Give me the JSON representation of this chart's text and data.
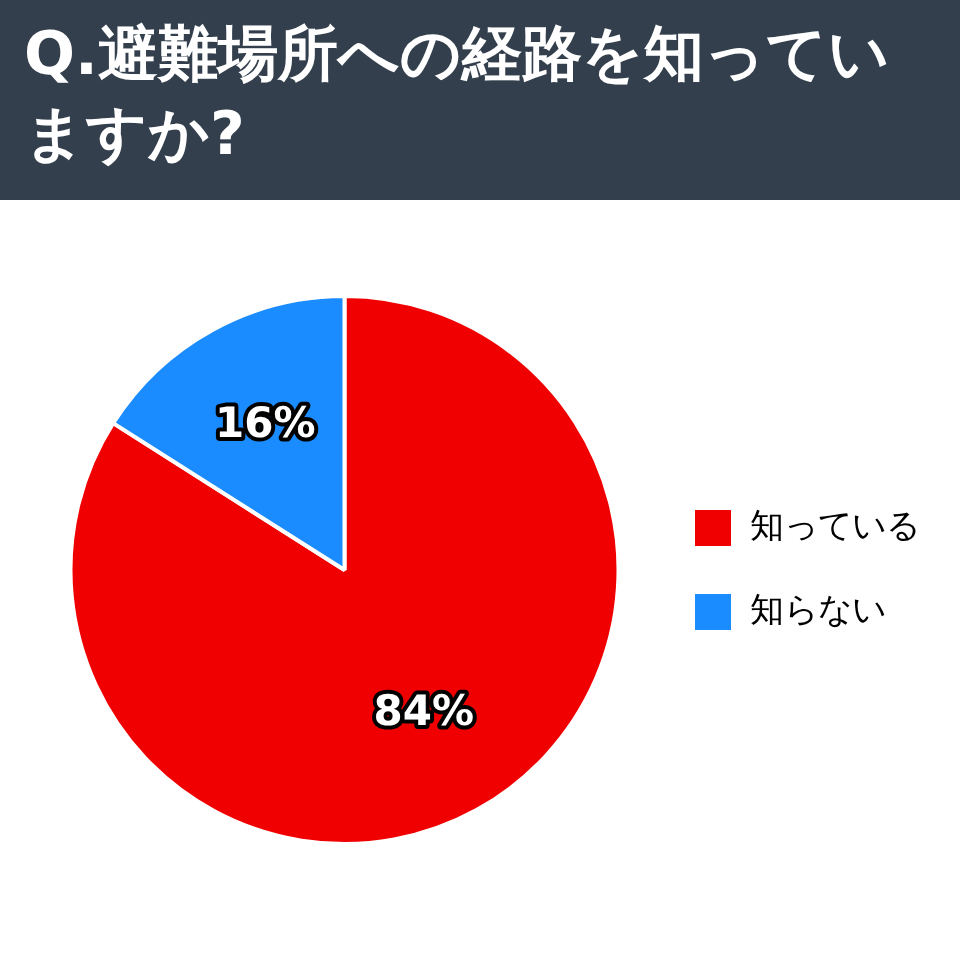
{
  "chart_data": {
    "type": "pie",
    "title": "Q.避難場所への経路を知っていますか?",
    "categories": [
      "知っている",
      "知らない"
    ],
    "values": [
      84,
      16
    ],
    "colors": [
      "#f00000",
      "#1a8cff"
    ],
    "value_labels": [
      "84%",
      "16%"
    ],
    "legend": "right"
  }
}
